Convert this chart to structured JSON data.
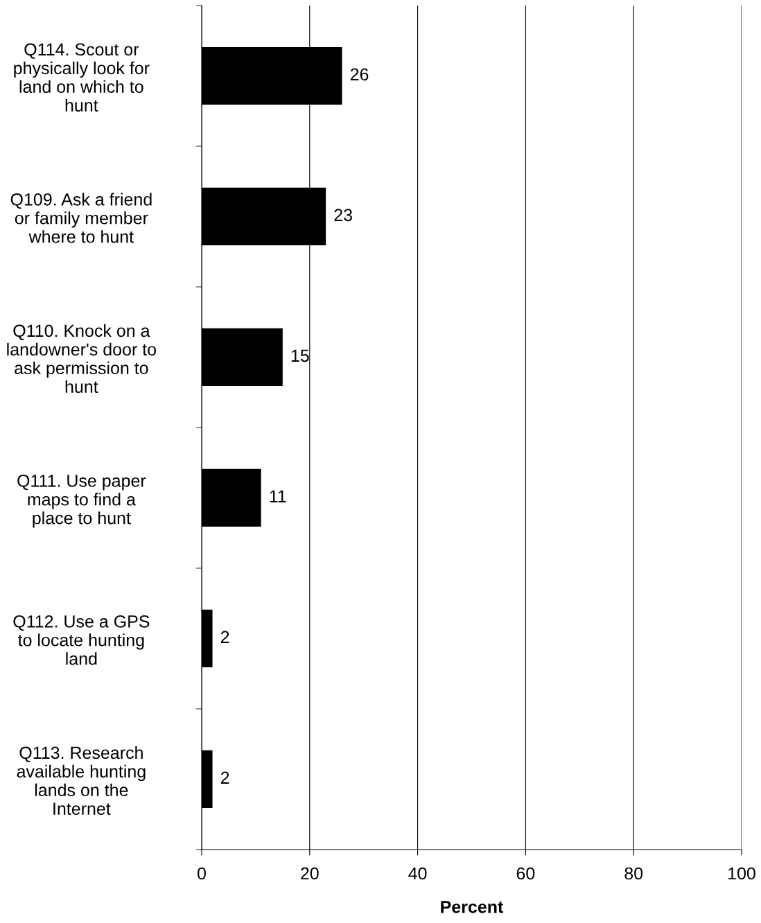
{
  "chart_data": {
    "type": "bar",
    "orientation": "horizontal",
    "categories": [
      "Q114. Scout or\nphysically look for\nland on which to\nhunt",
      "Q109. Ask a friend\nor family member\nwhere to hunt",
      "Q110. Knock on a\nlandowner's door to\nask permission to\nhunt",
      "Q111. Use paper\nmaps to find a\nplace to hunt",
      "Q112. Use a GPS\nto locate hunting\nland",
      "Q113. Research\navailable hunting\nlands on the\nInternet"
    ],
    "values": [
      26,
      23,
      15,
      11,
      2,
      2
    ],
    "color": "#000000",
    "xlabel": "Percent",
    "xlim": [
      0,
      100
    ],
    "xticks": [
      0,
      20,
      40,
      60,
      80,
      100
    ],
    "grid": "x",
    "data_labels": true
  }
}
